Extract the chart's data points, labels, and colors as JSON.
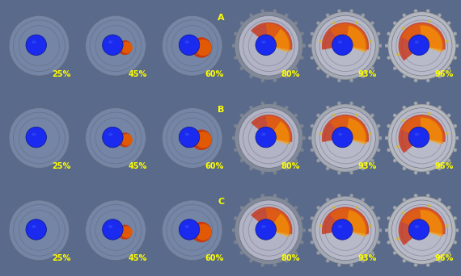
{
  "nrows": 3,
  "ncols": 6,
  "case_labels": [
    "A",
    "B",
    "C"
  ],
  "percentages": [
    "25%",
    "45%",
    "60%",
    "80%",
    "93%",
    "96%"
  ],
  "label_col": 2,
  "label_color": "#FFFF00",
  "label_fontsize": 8,
  "pct_fontsize": 7,
  "pct_color": "#FFFF00",
  "bg_color_outer": "#5a6a8a",
  "bg_color_inner": "#8090b0",
  "disc_color": "#7a8aaa",
  "disc_edge_color": "#606878",
  "blue_circle_color": "#1a2aee",
  "red_color": "#cc2200",
  "orange_color": "#ee8800",
  "melt_colors_by_col": [
    {
      "melt": false
    },
    {
      "melt": true,
      "small": true
    },
    {
      "melt": true,
      "medium": true
    },
    {
      "melt": true,
      "large": true
    },
    {
      "melt": true,
      "xlarge": true,
      "silver": true
    },
    {
      "melt": true,
      "xxlarge": true,
      "silver": true
    }
  ],
  "row_bg_colors": [
    "#4a5878",
    "#4a5878",
    "#4a5878"
  ],
  "figsize": [
    5.7,
    3.42
  ],
  "dpi": 100,
  "border_color": "#333344",
  "outer_ring_color_start": "#aaaaaa",
  "outer_ring_color_end": "#dddddd"
}
